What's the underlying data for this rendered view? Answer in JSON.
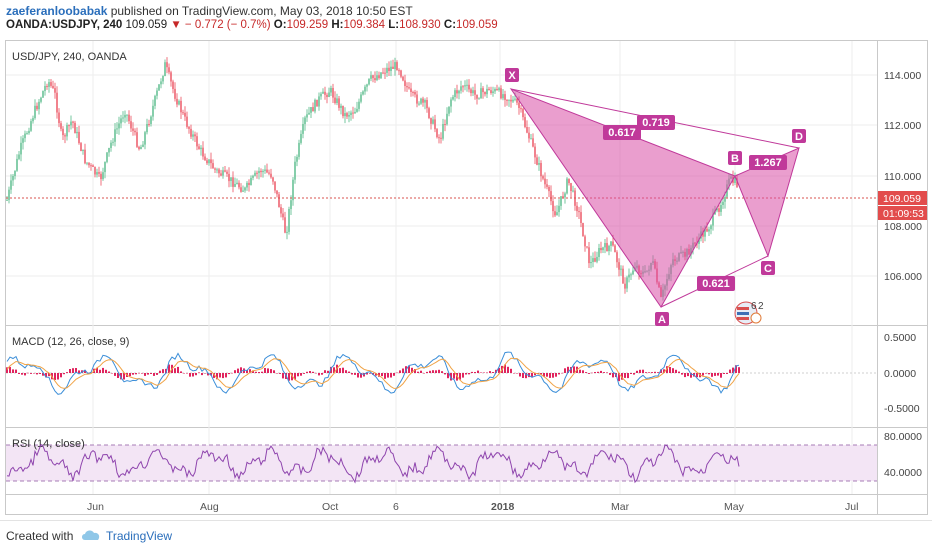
{
  "header": {
    "author": "zaeferanloobabak",
    "published_text": " published on TradingView.com, May 03, 2018 10:50 EST",
    "symbol": "OANDA:USDJPY, 240",
    "price": "109.059",
    "change": "− 0.772 (− 0.7%)",
    "open_label": "O:",
    "open": "109.259",
    "high_label": "H:",
    "high": "109.384",
    "low_label": "L:",
    "low": "108.930",
    "close_label": "C:",
    "close": "109.059"
  },
  "main_pane": {
    "title": "USD/JPY, 240, OANDA",
    "price_ticks": [
      "114.000",
      "112.000",
      "110.000",
      "108.000",
      "106.000"
    ],
    "last_price": "109.059",
    "countdown": "01:09:53",
    "colors": {
      "up": "#53b987",
      "down": "#eb4d5c",
      "last_line": "#d9534f",
      "pattern": "#d94fa6"
    }
  },
  "pattern": {
    "points": [
      "X",
      "A",
      "B",
      "C",
      "D"
    ],
    "ratios": {
      "xb": "0.617",
      "xd": "0.719",
      "bd": "1.267",
      "ac": "0.621"
    }
  },
  "macd_pane": {
    "title": "MACD (12, 26, close, 9)",
    "ticks": [
      "0.5000",
      "0.0000",
      "-0.5000"
    ]
  },
  "rsi_pane": {
    "title": "RSI (14, close)",
    "ticks": [
      "80.0000",
      "40.0000"
    ]
  },
  "time_axis": [
    "Jun",
    "Aug",
    "Oct",
    "6",
    "2018",
    "Mar",
    "May",
    "Jul"
  ],
  "footer": {
    "created": "Created with",
    "brand": "TradingView"
  }
}
